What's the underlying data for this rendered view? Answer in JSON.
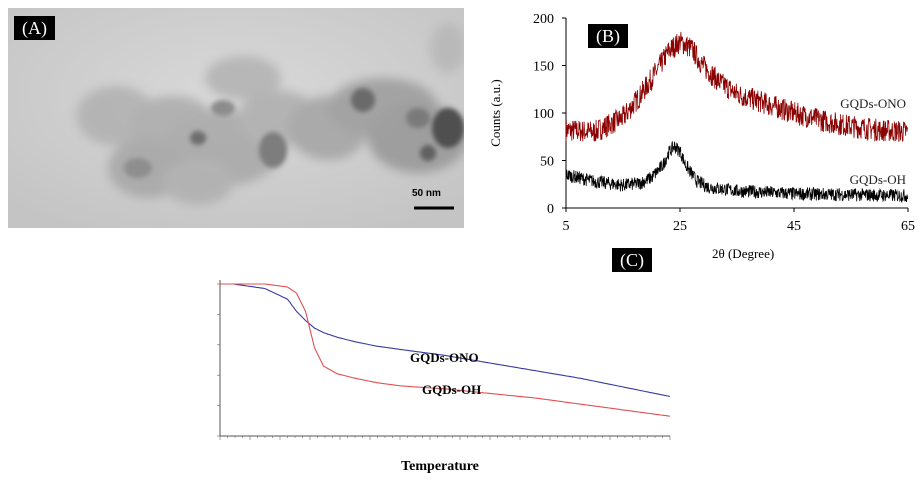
{
  "panels": {
    "a": {
      "label": "(A)",
      "scale_bar": "50 nm"
    },
    "b": {
      "label": "(B)"
    },
    "c": {
      "label": "(C)"
    }
  },
  "chart_data": [
    {
      "type": "line",
      "panel": "B",
      "xlabel": "2θ (Degree)",
      "ylabel": "Counts (a.u.)",
      "xlim": [
        5,
        65
      ],
      "ylim": [
        0,
        200
      ],
      "xticks": [
        5,
        25,
        45,
        65
      ],
      "yticks": [
        0,
        50,
        100,
        150,
        200
      ],
      "series": [
        {
          "name": "GQDs-ONO",
          "color": "#8b0000",
          "x": [
            5,
            10,
            15,
            18,
            21,
            23,
            25,
            27,
            29,
            32,
            35,
            40,
            45,
            50,
            55,
            60,
            65
          ],
          "y": [
            82,
            80,
            95,
            118,
            145,
            165,
            175,
            168,
            150,
            132,
            120,
            110,
            100,
            92,
            86,
            82,
            80
          ]
        },
        {
          "name": "GQDs-OH",
          "color": "#000000",
          "x": [
            5,
            10,
            15,
            18,
            20,
            22,
            23,
            24,
            25,
            26,
            28,
            30,
            35,
            45,
            55,
            65
          ],
          "y": [
            35,
            28,
            24,
            26,
            32,
            45,
            58,
            65,
            60,
            45,
            28,
            22,
            18,
            15,
            14,
            13
          ]
        }
      ]
    },
    {
      "type": "line",
      "panel": "C",
      "xlabel": "Temperature",
      "ylabel": "",
      "series": [
        {
          "name": "GQDs-ONO",
          "color": "#3a3aa0",
          "x": [
            0,
            3,
            10,
            15,
            17,
            19,
            21,
            23,
            26,
            30,
            35,
            40,
            50,
            60,
            70,
            80,
            90,
            100
          ],
          "y": [
            100,
            100,
            97,
            90,
            82,
            76,
            71,
            68,
            65,
            62,
            59,
            57,
            53,
            48,
            43,
            38,
            32,
            26
          ]
        },
        {
          "name": "GQDs-OH",
          "color": "#e05050",
          "x": [
            0,
            5,
            10,
            15,
            17,
            19,
            20,
            21,
            23,
            26,
            30,
            35,
            40,
            50,
            60,
            70,
            80,
            90,
            100
          ],
          "y": [
            100,
            100,
            100,
            98,
            94,
            82,
            70,
            58,
            46,
            41,
            38,
            35,
            33,
            31,
            28,
            25,
            21,
            17,
            13
          ]
        }
      ]
    }
  ]
}
